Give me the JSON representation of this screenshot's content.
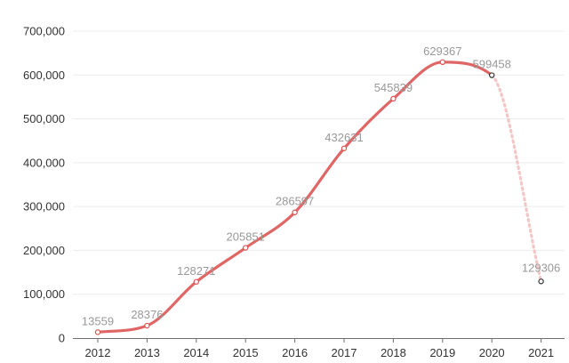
{
  "chart_data": {
    "type": "line",
    "title": "",
    "xlabel": "",
    "ylabel": "",
    "categories": [
      "2012",
      "2013",
      "2014",
      "2015",
      "2016",
      "2017",
      "2018",
      "2019",
      "2020",
      "2021"
    ],
    "values": [
      13559,
      28376,
      128271,
      205851,
      286597,
      432631,
      545839,
      629367,
      599458,
      129306
    ],
    "data_labels": [
      "13559",
      "28376",
      "128271",
      "205851",
      "286597",
      "432631",
      "545839",
      "629367",
      "599458",
      "129306"
    ],
    "projected_from_index": 8,
    "ylim": [
      0,
      700000
    ],
    "yticks": [
      0,
      100000,
      200000,
      300000,
      400000,
      500000,
      600000,
      700000
    ],
    "ytick_labels": [
      "0",
      "100,000",
      "200,000",
      "300,000",
      "400,000",
      "500,000",
      "600,000",
      "700,000"
    ],
    "grid": true,
    "legend": "none",
    "colors": {
      "line": "#e06666",
      "projected_line": "#f4c7c7",
      "point_fill": "#ffffff",
      "point_stroke_actual": "#d9534f",
      "point_stroke_projected": "#333333",
      "grid": "#ececec",
      "axis": "#6e6e6e",
      "tick_label": "#333333",
      "data_label": "#999999"
    }
  }
}
